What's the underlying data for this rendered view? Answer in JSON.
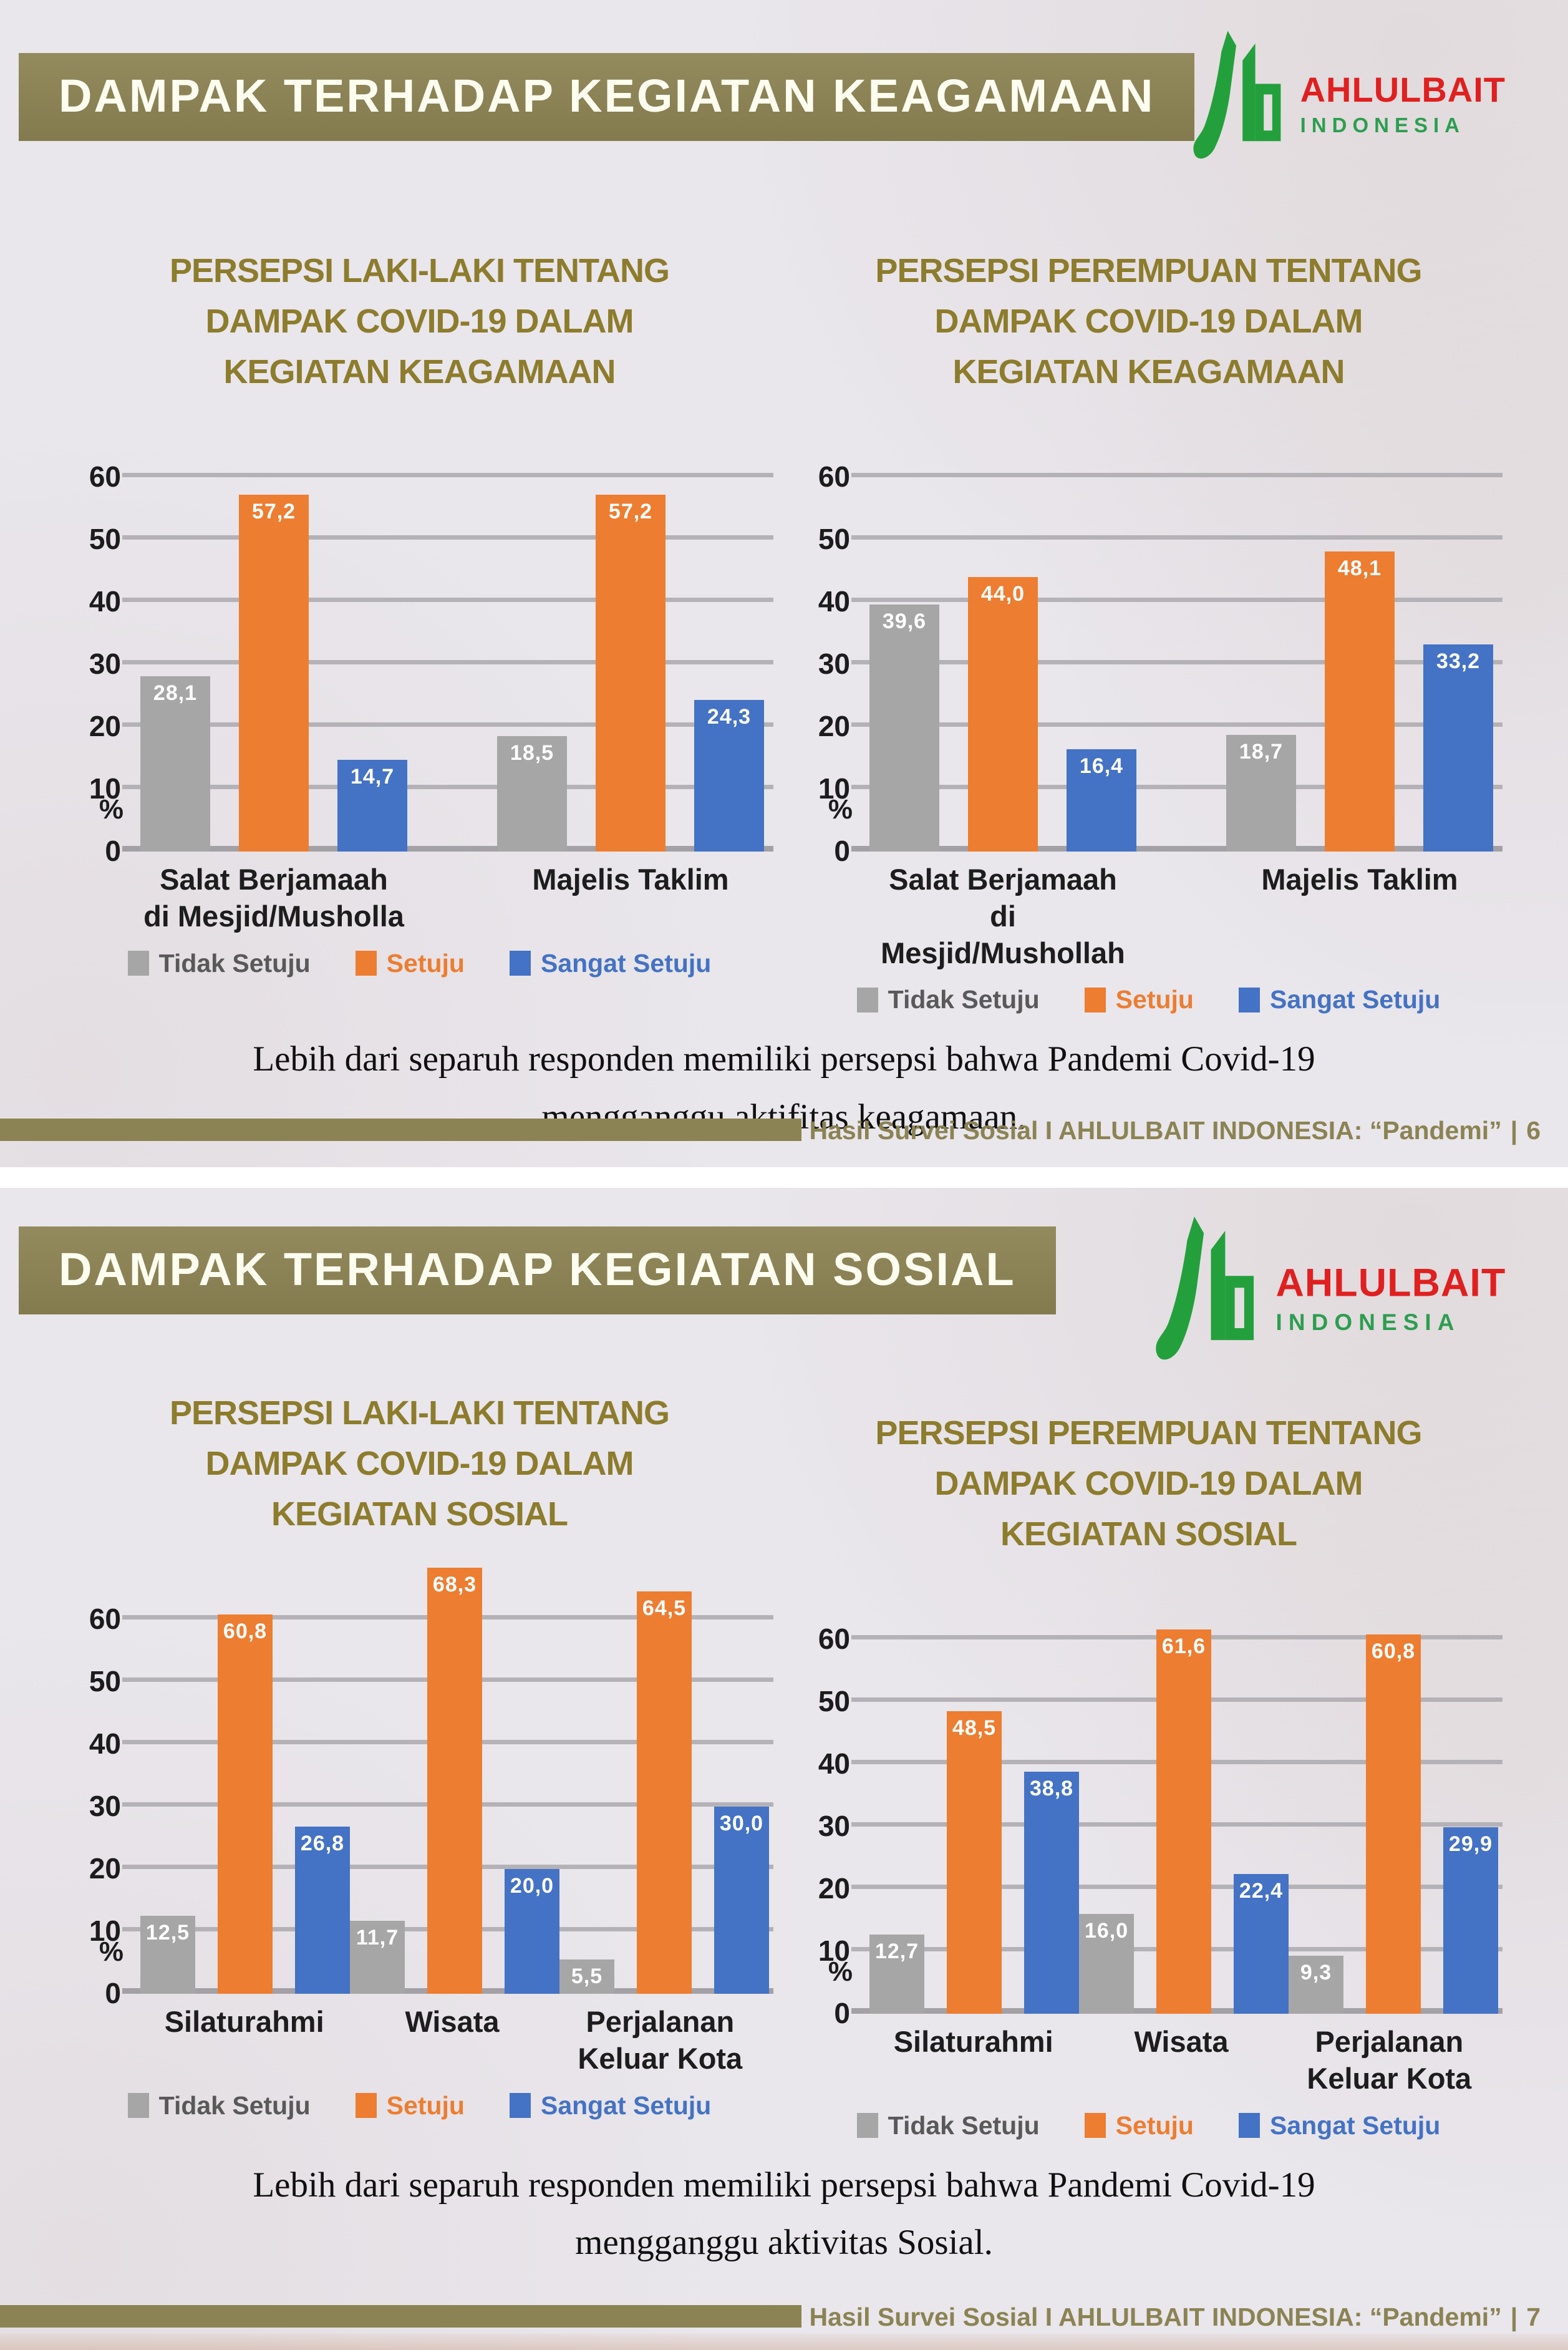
{
  "page": {
    "logo": {
      "title": "AHLULBAIT",
      "subtitle": "INDONESIA"
    },
    "slides": [
      {
        "header": "DAMPAK TERHADAP KEGIATAN KEAGAMAAN",
        "caption_line1": "Lebih dari separuh responden memiliki persepsi bahwa Pandemi Covid-19",
        "caption_line2": "mengganggu aktifitas keagamaan.",
        "footer_text": "Rilis Hasil Survei Sosial I AHLULBAIT INDONESIA: “Pandemi”",
        "footer_separator": "|",
        "footer_page": "6"
      },
      {
        "header": "DAMPAK TERHADAP KEGIATAN SOSIAL",
        "caption_line1": "Lebih dari separuh responden memiliki persepsi bahwa Pandemi Covid-19",
        "caption_line2": "mengganggu aktivitas Sosial.",
        "footer_text": "Rilis Hasil Survei Sosial I AHLULBAIT INDONESIA: “Pandemi”",
        "footer_separator": "|",
        "footer_page": "7"
      }
    ]
  },
  "legend": {
    "items": [
      {
        "label": "Tidak Setuju",
        "color": "#a6a6a6",
        "text_color": "#595959"
      },
      {
        "label": "Setuju",
        "color": "#ed7d31",
        "text_color": "#ed7d31"
      },
      {
        "label": "Sangat Setuju",
        "color": "#4472c4",
        "text_color": "#4472c4"
      }
    ]
  },
  "colors": {
    "banner": "#8b8353",
    "title_gold": "#8d7c2c",
    "bar_gray": "#a6a6a6",
    "bar_orange": "#ed7d31",
    "bar_blue": "#4472c4",
    "logo_green": "#23a03c",
    "logo_red": "#e02020"
  },
  "chart_data": [
    {
      "type": "bar",
      "title": "PERSEPSI LAKI-LAKI TENTANG DAMPAK COVID-19 DALAM KEGIATAN KEAGAMAAN",
      "title_lines": [
        "PERSEPSI LAKI-LAKI TENTANG",
        "DAMPAK COVID-19 DALAM",
        "KEGIATAN KEAGAMAAN"
      ],
      "categories": [
        "Salat Berjamaah\ndi Mesjid/Musholla",
        "Majelis Taklim"
      ],
      "series": [
        {
          "name": "Tidak Setuju",
          "color": "#a6a6a6",
          "values": [
            28.1,
            18.5
          ]
        },
        {
          "name": "Setuju",
          "color": "#ed7d31",
          "values": [
            57.2,
            57.2
          ]
        },
        {
          "name": "Sangat Setuju",
          "color": "#4472c4",
          "values": [
            14.7,
            24.3
          ]
        }
      ],
      "ylabel": "%",
      "yticks": [
        0,
        10,
        20,
        30,
        40,
        50,
        60
      ],
      "ylim": [
        0,
        60
      ],
      "grid": true,
      "legend_position": "bottom",
      "decimal_separator": ","
    },
    {
      "type": "bar",
      "title": "PERSEPSI PEREMPUAN TENTANG DAMPAK COVID-19 DALAM KEGIATAN KEAGAMAAN",
      "title_lines": [
        "PERSEPSI PEREMPUAN TENTANG",
        "DAMPAK COVID-19 DALAM",
        "KEGIATAN KEAGAMAAN"
      ],
      "categories": [
        "Salat Berjamaah\ndi Mesjid/Mushollah",
        "Majelis Taklim"
      ],
      "series": [
        {
          "name": "Tidak Setuju",
          "color": "#a6a6a6",
          "values": [
            39.6,
            18.7
          ]
        },
        {
          "name": "Setuju",
          "color": "#ed7d31",
          "values": [
            44.0,
            48.1
          ]
        },
        {
          "name": "Sangat Setuju",
          "color": "#4472c4",
          "values": [
            16.4,
            33.2
          ]
        }
      ],
      "ylabel": "%",
      "yticks": [
        0,
        10,
        20,
        30,
        40,
        50,
        60
      ],
      "ylim": [
        0,
        60
      ],
      "grid": true,
      "legend_position": "bottom",
      "decimal_separator": ","
    },
    {
      "type": "bar",
      "title": "PERSEPSI LAKI-LAKI TENTANG DAMPAK COVID-19 DALAM KEGIATAN SOSIAL",
      "title_lines": [
        "PERSEPSI LAKI-LAKI TENTANG",
        "DAMPAK COVID-19 DALAM",
        "KEGIATAN SOSIAL"
      ],
      "categories": [
        "Silaturahmi",
        "Wisata",
        "Perjalanan\nKeluar Kota"
      ],
      "series": [
        {
          "name": "Tidak Setuju",
          "color": "#a6a6a6",
          "values": [
            12.5,
            11.7,
            5.5
          ]
        },
        {
          "name": "Setuju",
          "color": "#ed7d31",
          "values": [
            60.8,
            68.3,
            64.5
          ]
        },
        {
          "name": "Sangat Setuju",
          "color": "#4472c4",
          "values": [
            26.8,
            20.0,
            30.0
          ]
        }
      ],
      "ylabel": "%",
      "yticks": [
        0,
        10,
        20,
        30,
        40,
        50,
        60
      ],
      "ylim": [
        0,
        60
      ],
      "grid": true,
      "legend_position": "bottom",
      "decimal_separator": ","
    },
    {
      "type": "bar",
      "title": "PERSEPSI PEREMPUAN TENTANG DAMPAK COVID-19 DALAM KEGIATAN SOSIAL",
      "title_lines": [
        "PERSEPSI PEREMPUAN TENTANG",
        "DAMPAK COVID-19 DALAM",
        "KEGIATAN SOSIAL"
      ],
      "categories": [
        "Silaturahmi",
        "Wisata",
        "Perjalanan\nKeluar Kota"
      ],
      "series": [
        {
          "name": "Tidak Setuju",
          "color": "#a6a6a6",
          "values": [
            12.7,
            16.0,
            9.3
          ]
        },
        {
          "name": "Setuju",
          "color": "#ed7d31",
          "values": [
            48.5,
            61.6,
            60.8
          ]
        },
        {
          "name": "Sangat Setuju",
          "color": "#4472c4",
          "values": [
            38.8,
            22.4,
            29.9
          ]
        }
      ],
      "ylabel": "%",
      "yticks": [
        0,
        10,
        20,
        30,
        40,
        50,
        60
      ],
      "ylim": [
        0,
        60
      ],
      "grid": true,
      "legend_position": "bottom",
      "decimal_separator": ","
    }
  ]
}
